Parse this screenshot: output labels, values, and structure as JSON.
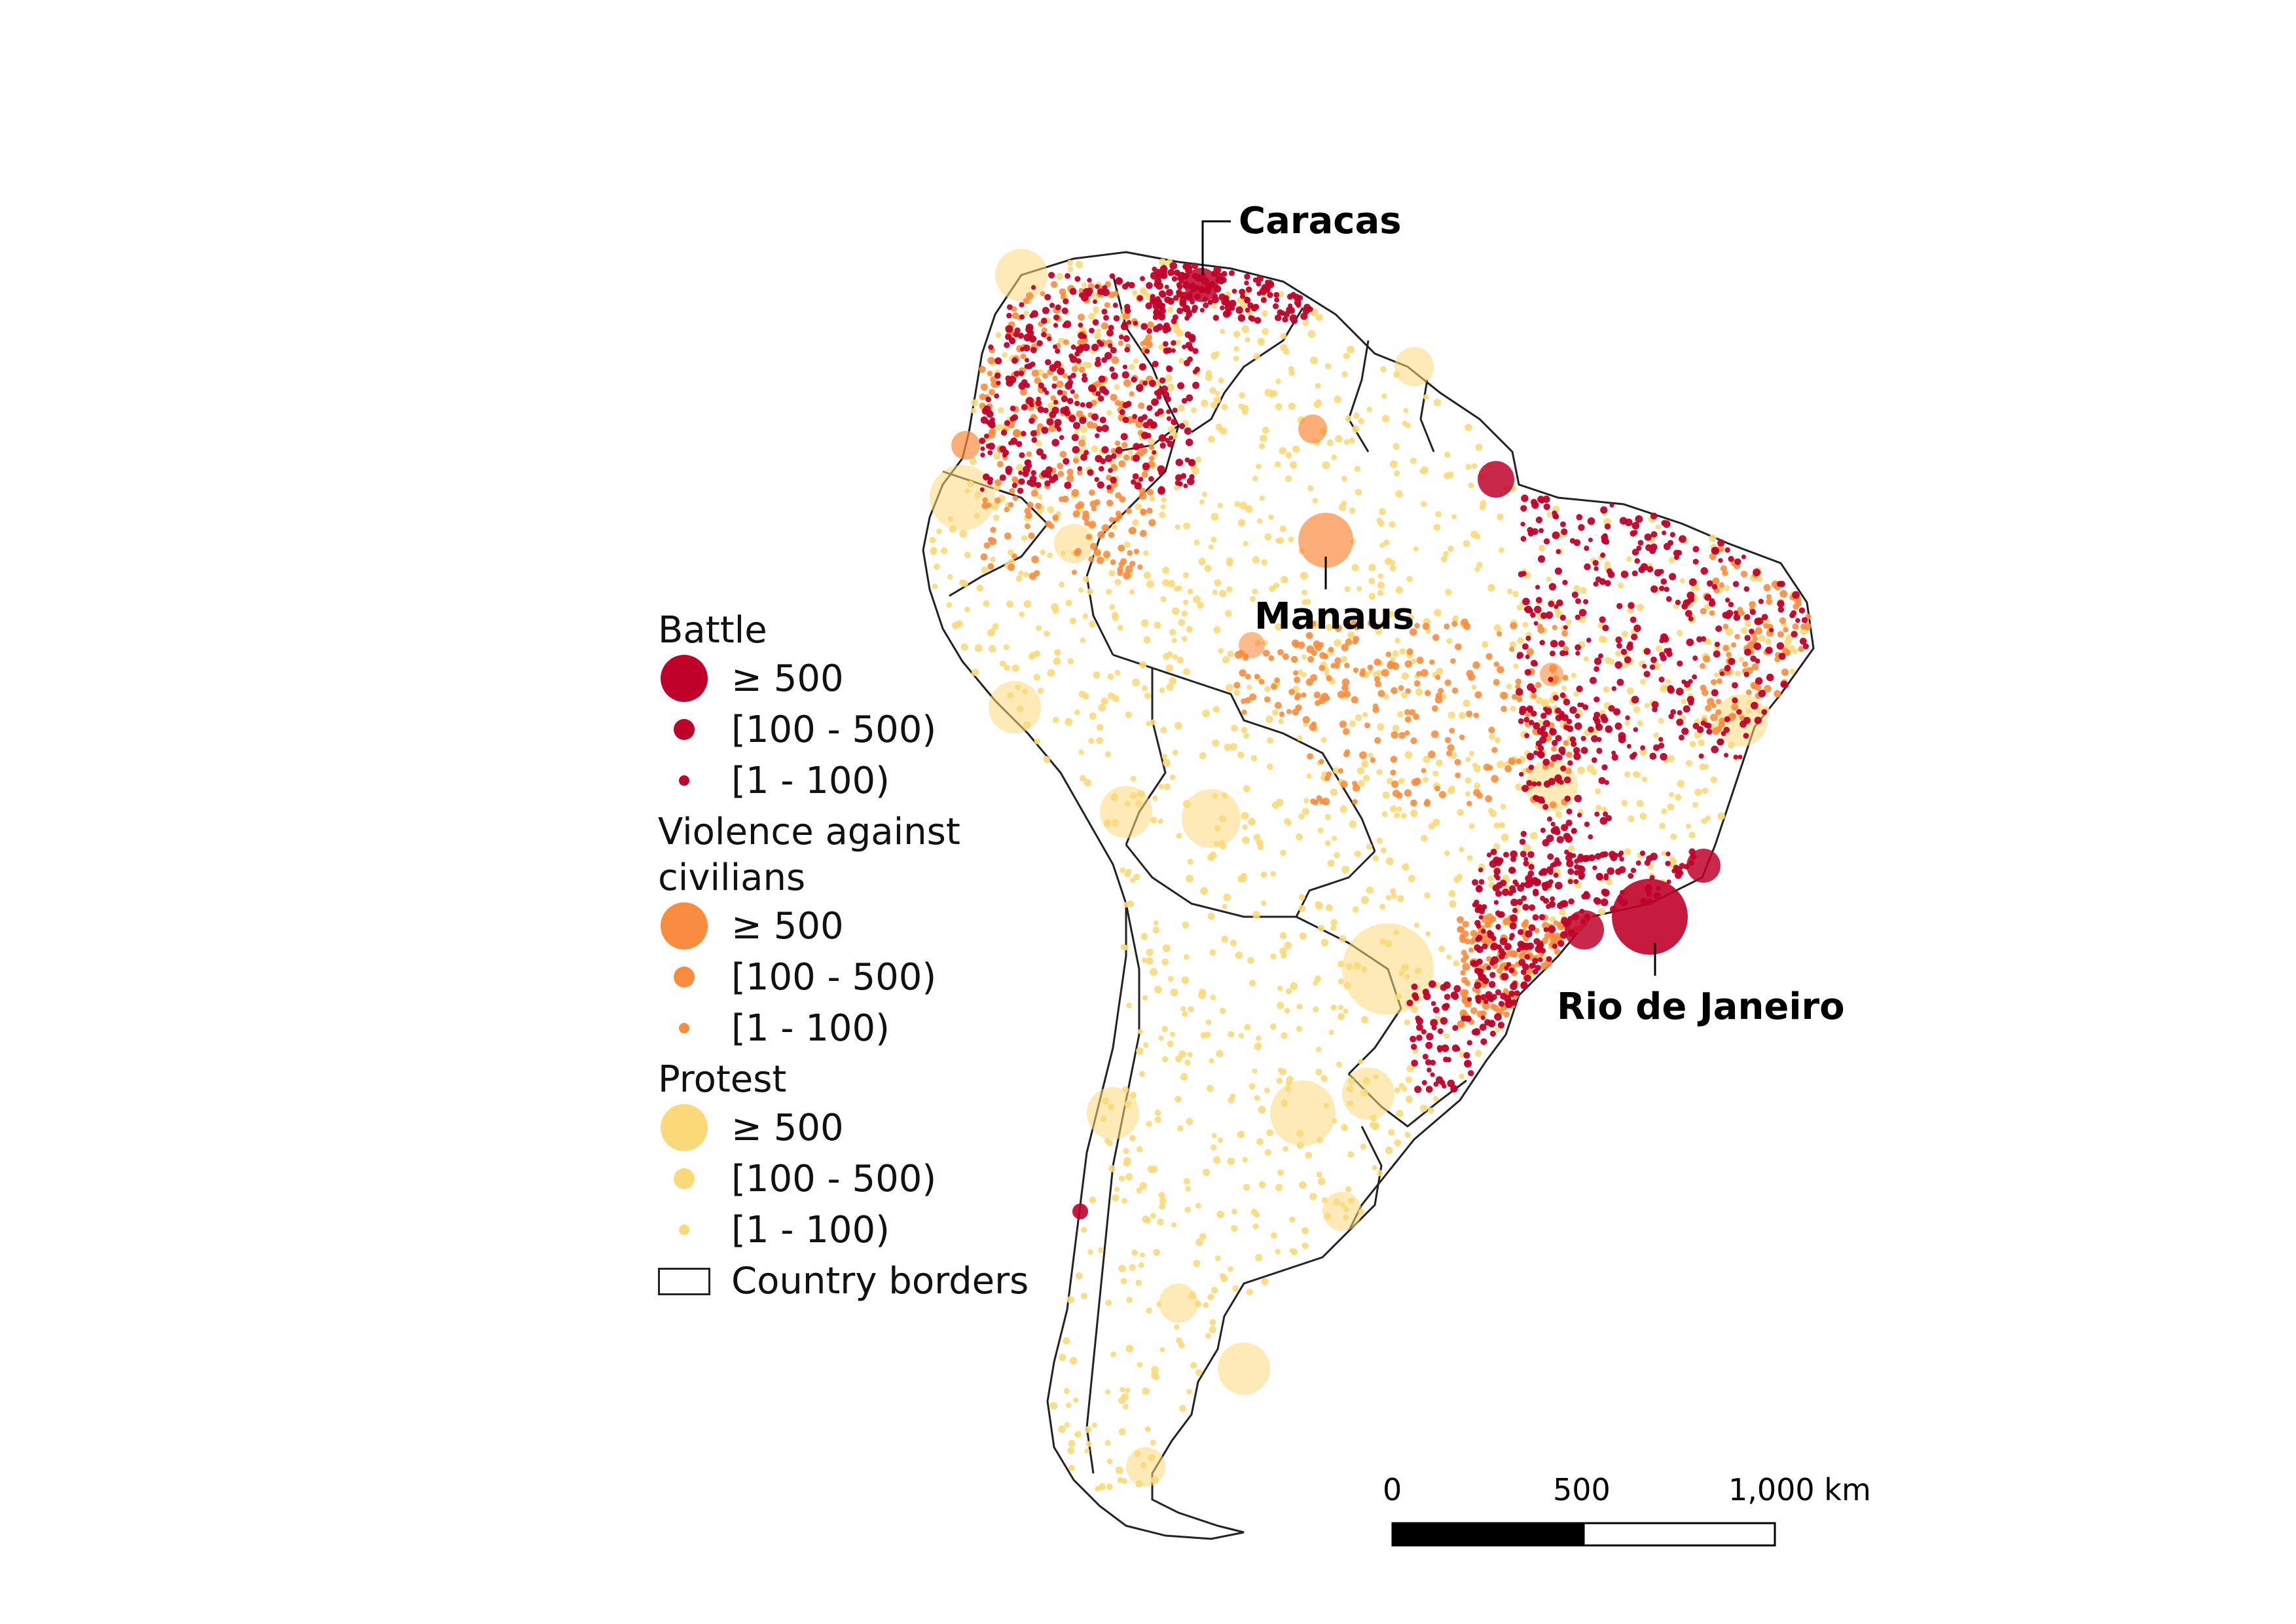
{
  "legend": {
    "groups": [
      {
        "title": "Battle",
        "color": "#c0022a",
        "items": [
          {
            "label": "≥ 500",
            "size": "large"
          },
          {
            "label": "[100 - 500)",
            "size": "medium"
          },
          {
            "label": "[1 - 100)",
            "size": "small"
          }
        ]
      },
      {
        "title": "Violence against civilians",
        "color": "#f98c3e",
        "items": [
          {
            "label": "≥ 500",
            "size": "large"
          },
          {
            "label": "[100 - 500)",
            "size": "medium"
          },
          {
            "label": "[1 - 100)",
            "size": "small"
          }
        ]
      },
      {
        "title": "Protest",
        "color": "#fbd97a",
        "items": [
          {
            "label": "≥ 500",
            "size": "large"
          },
          {
            "label": "[100 - 500)",
            "size": "medium"
          },
          {
            "label": "[1 - 100)",
            "size": "small"
          }
        ]
      }
    ],
    "borders_label": "Country borders"
  },
  "cities": {
    "caracas": "Caracas",
    "manaus": "Manaus",
    "rio": "Rio de Janeiro"
  },
  "scale_bar": {
    "labels": [
      "0",
      "500",
      "1,000 km"
    ]
  },
  "colors": {
    "battle": "#c0022a",
    "violence": "#f98c3e",
    "protest": "#fbd97a",
    "border": "#222222"
  }
}
